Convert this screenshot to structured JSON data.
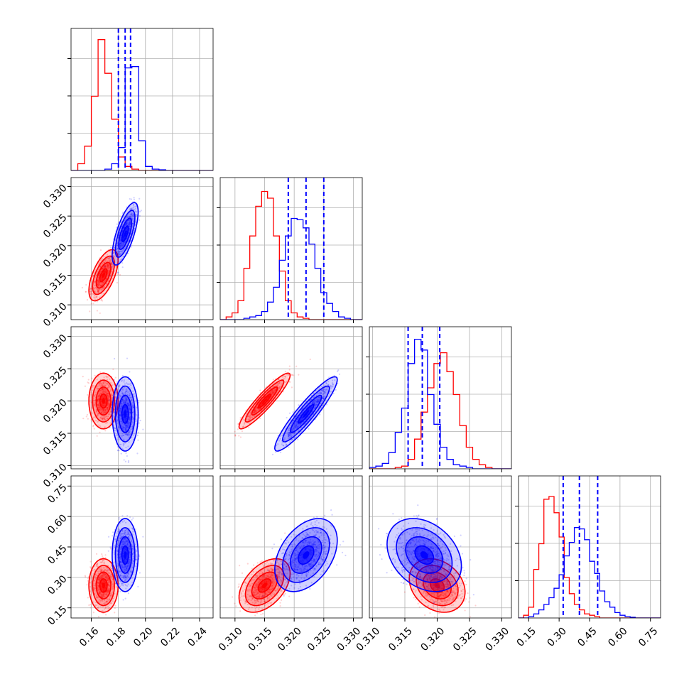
{
  "colors": {
    "red": "#ff0000",
    "blue": "#0000ff",
    "grid": "#b0b0b0",
    "frame": "#000000"
  },
  "chart_data": {
    "type": "corner",
    "parameters": [
      "p0",
      "p1",
      "p2",
      "p3"
    ],
    "ranges": [
      [
        0.145,
        0.25
      ],
      [
        0.3075,
        0.3315
      ],
      [
        0.3095,
        0.3315
      ],
      [
        0.1,
        0.8
      ]
    ],
    "ticks": [
      [
        0.16,
        0.18,
        0.2,
        0.22,
        0.24
      ],
      [
        0.31,
        0.315,
        0.32,
        0.325,
        0.33
      ],
      [
        0.31,
        0.315,
        0.32,
        0.325,
        0.33
      ],
      [
        0.15,
        0.3,
        0.45,
        0.6,
        0.75
      ]
    ],
    "tick_labels": [
      [
        "0.16",
        "0.18",
        "0.20",
        "0.22",
        "0.24"
      ],
      [
        "0.310",
        "0.315",
        "0.320",
        "0.325",
        "0.330"
      ],
      [
        "0.310",
        "0.315",
        "0.320",
        "0.325",
        "0.330"
      ],
      [
        "0.15",
        "0.30",
        "0.45",
        "0.60",
        "0.75"
      ]
    ],
    "grid": true,
    "quantile_lines": {
      "color": "blue",
      "style": "dashed",
      "p0": [
        0.18,
        0.185,
        0.189
      ],
      "p1": [
        0.319,
        0.322,
        0.325
      ],
      "p2": [
        0.3155,
        0.3177,
        0.3204
      ],
      "p3": [
        0.32,
        0.4,
        0.49
      ]
    },
    "series": [
      {
        "color": "red",
        "mean": [
          0.169,
          0.315,
          0.32,
          0.26
        ],
        "std": [
          0.0045,
          0.0018,
          0.0018,
          0.055
        ],
        "corr": [
          [
            1.0,
            0.6,
            0.0,
            0.0
          ],
          [
            0.6,
            1.0,
            0.92,
            0.45
          ],
          [
            0.0,
            0.92,
            1.0,
            -0.25
          ],
          [
            0.0,
            0.45,
            -0.25,
            1.0
          ]
        ]
      },
      {
        "color": "blue",
        "mean": [
          0.185,
          0.322,
          0.318,
          0.41
        ],
        "std": [
          0.004,
          0.0022,
          0.0024,
          0.075
        ],
        "corr": [
          [
            1.0,
            0.7,
            0.0,
            0.0
          ],
          [
            0.7,
            1.0,
            0.92,
            0.4
          ],
          [
            0.0,
            0.92,
            1.0,
            -0.3
          ],
          [
            0.0,
            0.4,
            -0.3,
            1.0
          ]
        ]
      }
    ],
    "histograms": {
      "p0": {
        "edges": [
          0.145,
          0.15,
          0.155,
          0.16,
          0.165,
          0.17,
          0.175,
          0.18,
          0.185,
          0.19,
          0.195,
          0.2,
          0.205,
          0.21,
          0.215,
          0.22,
          0.225,
          0.23,
          0.235,
          0.24,
          0.245,
          0.25
        ],
        "red": [
          0.0,
          0.05,
          0.18,
          0.55,
          0.97,
          0.72,
          0.38,
          0.1,
          0.03,
          0.01,
          0,
          0,
          0,
          0,
          0,
          0,
          0,
          0,
          0,
          0,
          0
        ],
        "blue": [
          0,
          0,
          0,
          0,
          0,
          0.01,
          0.05,
          0.17,
          0.76,
          0.77,
          0.22,
          0.03,
          0.01,
          0.005,
          0,
          0,
          0,
          0,
          0,
          0,
          0
        ]
      },
      "p1": {
        "edges": [
          0.3075,
          0.3085,
          0.3095,
          0.3105,
          0.3115,
          0.3125,
          0.3135,
          0.3145,
          0.3155,
          0.3165,
          0.3175,
          0.3185,
          0.3195,
          0.3205,
          0.3215,
          0.3225,
          0.3235,
          0.3245,
          0.3255,
          0.3265,
          0.3275,
          0.3285,
          0.3295,
          0.3305,
          0.3315
        ],
        "red": [
          0.0,
          0.02,
          0.05,
          0.14,
          0.38,
          0.62,
          0.84,
          0.95,
          0.9,
          0.62,
          0.36,
          0.14,
          0.05,
          0.02,
          0.01,
          0,
          0,
          0,
          0,
          0,
          0,
          0,
          0,
          0
        ],
        "blue": [
          0,
          0,
          0,
          0,
          0.01,
          0.02,
          0.03,
          0.06,
          0.13,
          0.24,
          0.44,
          0.62,
          0.75,
          0.74,
          0.68,
          0.56,
          0.38,
          0.2,
          0.12,
          0.06,
          0.02,
          0.01,
          0,
          0
        ]
      },
      "p2": {
        "edges": [
          0.3095,
          0.3105,
          0.3115,
          0.3125,
          0.3135,
          0.3145,
          0.3155,
          0.3165,
          0.3175,
          0.3185,
          0.3195,
          0.3205,
          0.3215,
          0.3225,
          0.3235,
          0.3245,
          0.3255,
          0.3265,
          0.3275,
          0.3285,
          0.3295,
          0.3305,
          0.3315
        ],
        "red": [
          0,
          0,
          0,
          0,
          0.01,
          0.02,
          0.07,
          0.22,
          0.42,
          0.6,
          0.78,
          0.86,
          0.72,
          0.55,
          0.32,
          0.16,
          0.07,
          0.03,
          0.01,
          0,
          0,
          0
        ],
        "blue": [
          0.01,
          0.02,
          0.04,
          0.12,
          0.27,
          0.45,
          0.78,
          0.96,
          0.88,
          0.55,
          0.33,
          0.16,
          0.07,
          0.03,
          0.02,
          0.01,
          0,
          0,
          0,
          0,
          0,
          0
        ]
      },
      "p3": {
        "edges": [
          0.1,
          0.125,
          0.15,
          0.175,
          0.2,
          0.225,
          0.25,
          0.275,
          0.3,
          0.325,
          0.35,
          0.375,
          0.4,
          0.425,
          0.45,
          0.475,
          0.5,
          0.525,
          0.55,
          0.575,
          0.6,
          0.625,
          0.65,
          0.675,
          0.7,
          0.725,
          0.75,
          0.775,
          0.8
        ],
        "red": [
          0,
          0.02,
          0.08,
          0.36,
          0.55,
          0.88,
          0.9,
          0.78,
          0.6,
          0.3,
          0.18,
          0.1,
          0.06,
          0.03,
          0.02,
          0.01,
          0,
          0,
          0,
          0,
          0,
          0,
          0,
          0,
          0,
          0,
          0,
          0
        ],
        "blue": [
          0,
          0,
          0.01,
          0.03,
          0.06,
          0.1,
          0.15,
          0.22,
          0.32,
          0.46,
          0.56,
          0.67,
          0.66,
          0.58,
          0.42,
          0.33,
          0.2,
          0.12,
          0.08,
          0.04,
          0.02,
          0.01,
          0.005,
          0,
          0,
          0,
          0,
          0
        ]
      }
    }
  }
}
